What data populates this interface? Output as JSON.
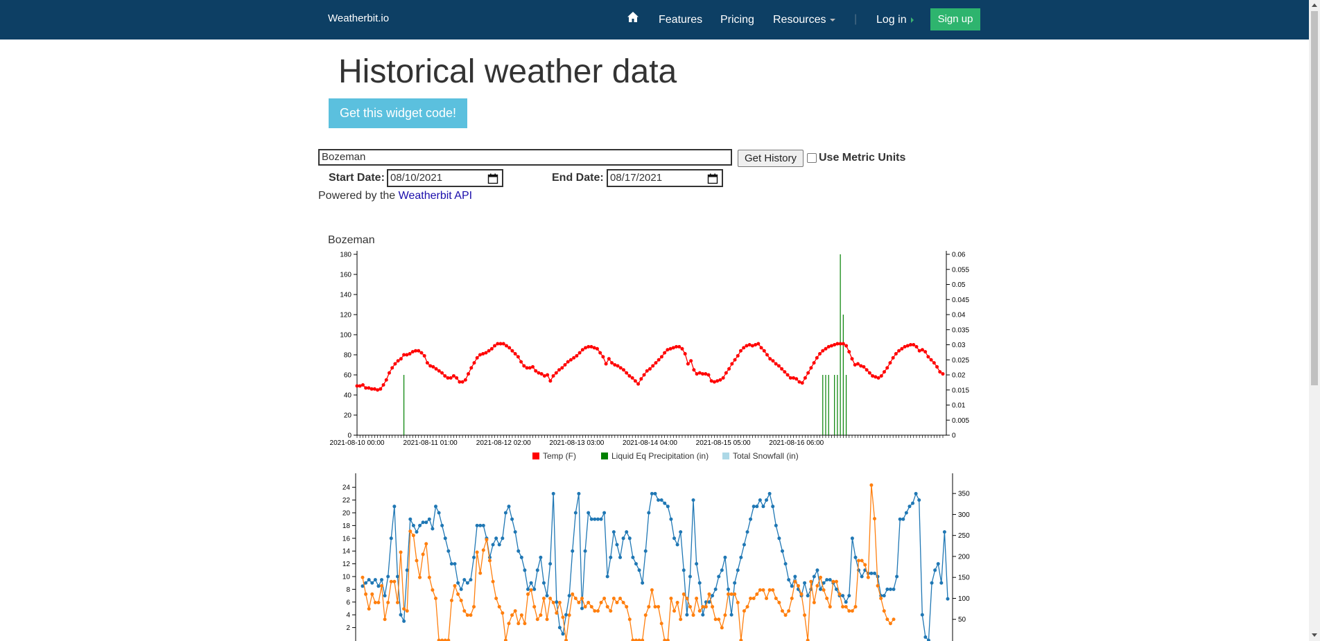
{
  "nav": {
    "brand": "Weatherbit.io",
    "home_icon": "home-icon",
    "features": "Features",
    "pricing": "Pricing",
    "resources": "Resources",
    "separator": "|",
    "login": "Log in",
    "signup": "Sign up"
  },
  "page": {
    "title": "Historical weather data",
    "widget_button": "Get this widget code!"
  },
  "form": {
    "city_value": "Bozeman",
    "get_history": "Get History",
    "metric_label": "Use Metric Units",
    "metric_checked": false,
    "start_label": "Start Date:",
    "start_value": "08/10/2021",
    "end_label": "End Date:",
    "end_value": "08/17/2021",
    "powered_prefix": "Powered by the",
    "powered_link": "Weatherbit API"
  },
  "colors": {
    "navbar": "#0d3f64",
    "signup": "#2eb46e",
    "widget_button": "#5bc0de",
    "temp": "#ff0000",
    "precip": "#008000",
    "snow": "#add8e6",
    "blue_series": "#1f77b4",
    "orange_series": "#ff7f0e"
  },
  "chart_data": [
    {
      "type": "line",
      "title": "Bozeman",
      "x_ticks": [
        "2021-08-10 00:00",
        "2021-08-11 01:00",
        "2021-08-12 02:00",
        "2021-08-13 03:00",
        "2021-08-14 04:00",
        "2021-08-15 05:00",
        "2021-08-16 06:00"
      ],
      "ylim_left": [
        0,
        180
      ],
      "yticks_left": [
        0,
        20,
        40,
        60,
        80,
        100,
        120,
        140,
        160,
        180
      ],
      "ylim_right": [
        0,
        0.06
      ],
      "yticks_right": [
        "0",
        "0.005",
        "0.01",
        "0.015",
        "0.02",
        "0.025",
        "0.03",
        "0.035",
        "0.04",
        "0.045",
        "0.05",
        "0.055",
        "0.06"
      ],
      "legend": [
        {
          "name": "Temp (F)",
          "color": "#ff0000"
        },
        {
          "name": "Liquid Eq Precipitation (in)",
          "color": "#008000"
        },
        {
          "name": "Total Snowfall (in)",
          "color": "#add8e6"
        }
      ],
      "legend_position": "bottom",
      "series": [
        {
          "name": "Temp (F)",
          "axis": "left",
          "hours_per_point": 1,
          "values": [
            49,
            49,
            50,
            47,
            47,
            46,
            46,
            45,
            46,
            50,
            55,
            62,
            67,
            71,
            74,
            76,
            80,
            80,
            81,
            83,
            84,
            84,
            82,
            79,
            72,
            69,
            68,
            66,
            64,
            62,
            59,
            57,
            57,
            59,
            57,
            53,
            53,
            55,
            61,
            67,
            72,
            77,
            80,
            81,
            82,
            84,
            86,
            89,
            91,
            91,
            91,
            89,
            87,
            84,
            81,
            78,
            73,
            69,
            67,
            67,
            68,
            64,
            62,
            61,
            59,
            60,
            54,
            59,
            62,
            65,
            67,
            70,
            73,
            75,
            77,
            79,
            82,
            85,
            87,
            88,
            88,
            87,
            86,
            82,
            78,
            71,
            76,
            72,
            70,
            69,
            67,
            65,
            62,
            59,
            57,
            54,
            51,
            56,
            60,
            64,
            66,
            69,
            72,
            75,
            78,
            82,
            85,
            86,
            87,
            88,
            88,
            86,
            81,
            71,
            74,
            65,
            61,
            62,
            61,
            61,
            60,
            54,
            53,
            54,
            55,
            57,
            62,
            66,
            71,
            75,
            79,
            84,
            87,
            89,
            90,
            89,
            90,
            91,
            87,
            84,
            80,
            76,
            74,
            71,
            69,
            66,
            63,
            60,
            57,
            57,
            56,
            53,
            52,
            57,
            62,
            67,
            72,
            77,
            81,
            84,
            86,
            88,
            89,
            90,
            91,
            91,
            91,
            89,
            83,
            76,
            70,
            71,
            69,
            68,
            65,
            62,
            59,
            58,
            57,
            59,
            63,
            67,
            72,
            77,
            81,
            84,
            86,
            88,
            89,
            90,
            90,
            88,
            84,
            85,
            83,
            78,
            75,
            72,
            68,
            63,
            61
          ]
        },
        {
          "name": "Liquid Eq Precipitation (in)",
          "axis": "right",
          "points": [
            [
              16,
              0.02
            ],
            [
              159,
              0.02
            ],
            [
              160,
              0.02
            ],
            [
              161,
              0.02
            ],
            [
              163,
              0.02
            ],
            [
              164,
              0.02
            ],
            [
              165,
              0.06
            ],
            [
              166,
              0.04
            ],
            [
              167,
              0.02
            ]
          ]
        },
        {
          "name": "Total Snowfall (in)",
          "axis": "right",
          "points": []
        }
      ]
    },
    {
      "type": "line",
      "ylim_left": [
        0,
        25
      ],
      "yticks_left": [
        0,
        2,
        4,
        6,
        8,
        10,
        12,
        14,
        16,
        18,
        20,
        22,
        24
      ],
      "ylim_right": [
        0,
        380
      ],
      "yticks_right": [
        0,
        50,
        100,
        150,
        200,
        250,
        300,
        350
      ],
      "series": [
        {
          "color": "#1f77b4",
          "axis": "left",
          "values": [
            8.5,
            9,
            9.5,
            9,
            9.5,
            8.5,
            9.5,
            7,
            10,
            16,
            21,
            10,
            4,
            3,
            11,
            19,
            18,
            17,
            18,
            18.5,
            18.5,
            19,
            17.5,
            21,
            20,
            18,
            16,
            14,
            12,
            12,
            9,
            8,
            9.5,
            9,
            9.5,
            13,
            18,
            18,
            18,
            16,
            13,
            15,
            16,
            15,
            16,
            20,
            21,
            19,
            17,
            14,
            13,
            11,
            8,
            9,
            8,
            11,
            13,
            9,
            7,
            12,
            23,
            6,
            2,
            1,
            4,
            7,
            14,
            20,
            23,
            5,
            14,
            20,
            19,
            19,
            19,
            19,
            20,
            10,
            13,
            17,
            15,
            13,
            16,
            17,
            16,
            13,
            12,
            11,
            9,
            14,
            20,
            23,
            23,
            22,
            22,
            21.5,
            21,
            19,
            16,
            15,
            17,
            11,
            4,
            10,
            22,
            12,
            9,
            4,
            6,
            6,
            7,
            8,
            10,
            11,
            13,
            8,
            4,
            9,
            11,
            13,
            15,
            17,
            19,
            21,
            21,
            22,
            21,
            22,
            23,
            21,
            18,
            16,
            14,
            12,
            9.5,
            8.5,
            10,
            8,
            7,
            9,
            7,
            8,
            10,
            11,
            8,
            9,
            9.5,
            9.5,
            9,
            8,
            7,
            7,
            6,
            7,
            16,
            13,
            11,
            10,
            11,
            10.5,
            10.5,
            10.5,
            10,
            7,
            7,
            8,
            8,
            8,
            10,
            19,
            19,
            20,
            21,
            21.5,
            23,
            22,
            4,
            0.5,
            0,
            9,
            11,
            12,
            9,
            17,
            6.5
          ],
          "partially_hidden_below_viewport": true
        },
        {
          "color": "#ff7f0e",
          "axis": "right",
          "values": [
            150,
            110,
            75,
            110,
            90,
            90,
            130,
            50,
            90,
            140,
            140,
            90,
            210,
            75,
            70,
            260,
            250,
            190,
            150,
            205,
            230,
            150,
            120,
            100,
            0,
            0,
            0,
            0,
            95,
            130,
            110,
            95,
            70,
            60,
            60,
            80,
            210,
            160,
            215,
            240,
            190,
            140,
            100,
            80,
            65,
            0,
            40,
            60,
            70,
            40,
            60,
            40,
            110,
            120,
            80,
            50,
            60,
            100,
            50,
            100,
            90,
            65,
            90,
            55,
            0,
            60,
            110,
            100,
            90,
            100,
            80,
            90,
            80,
            70,
            70,
            90,
            100,
            80,
            70,
            100,
            90,
            100,
            90,
            80,
            50,
            0,
            0,
            0,
            0,
            60,
            80,
            120,
            80,
            80,
            40,
            0,
            0,
            100,
            70,
            90,
            50,
            110,
            100,
            80,
            60,
            100,
            70,
            80,
            80,
            110,
            80,
            50,
            50,
            30,
            60,
            110,
            110,
            110,
            90,
            0,
            70,
            80,
            100,
            100,
            110,
            120,
            120,
            100,
            120,
            120,
            100,
            90,
            70,
            60,
            70,
            100,
            140,
            130,
            110,
            60,
            0,
            140,
            90,
            130,
            150,
            120,
            100,
            80,
            140,
            140,
            110,
            80,
            80,
            70,
            70,
            80,
            190,
            190,
            180,
            150,
            370,
            290,
            130,
            100,
            70,
            50,
            40,
            50
          ]
        }
      ]
    }
  ]
}
